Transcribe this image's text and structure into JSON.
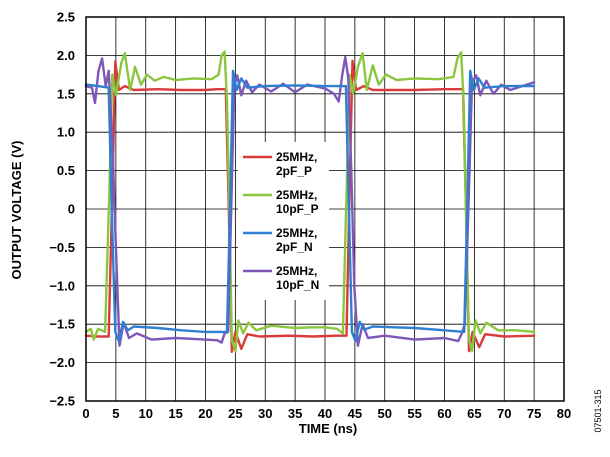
{
  "chart_data": {
    "type": "line",
    "title": "",
    "xlabel": "TIME (ns)",
    "ylabel": "OUTPUT VOLTAGE (V)",
    "xlim": [
      0,
      80
    ],
    "ylim": [
      -2.5,
      2.5
    ],
    "x_ticks": [
      "0",
      "5",
      "10",
      "15",
      "20",
      "25",
      "30",
      "35",
      "40",
      "45",
      "50",
      "55",
      "60",
      "65",
      "70",
      "75",
      "80"
    ],
    "y_ticks": [
      "2.5",
      "2.0",
      "1.5",
      "1.0",
      "0.5",
      "0",
      "−0.5",
      "−1.0",
      "−1.5",
      "−2.0",
      "−2.5"
    ],
    "grid": true,
    "legend_position": "center",
    "figure_id": "07501-315",
    "series": [
      {
        "name": "25MHz,\n2pF_P",
        "color": "#d93a3a",
        "points": [
          [
            0,
            -1.65
          ],
          [
            2,
            -1.66
          ],
          [
            3.8,
            -1.66
          ],
          [
            4.4,
            0.2
          ],
          [
            4.9,
            1.92
          ],
          [
            5.5,
            1.55
          ],
          [
            6.5,
            1.6
          ],
          [
            8,
            1.55
          ],
          [
            12,
            1.56
          ],
          [
            16,
            1.55
          ],
          [
            20,
            1.55
          ],
          [
            22,
            1.56
          ],
          [
            23.4,
            1.56
          ],
          [
            23.9,
            0
          ],
          [
            24.4,
            -1.86
          ],
          [
            25,
            -1.6
          ],
          [
            26,
            -1.82
          ],
          [
            27,
            -1.63
          ],
          [
            29,
            -1.66
          ],
          [
            34,
            -1.65
          ],
          [
            38,
            -1.66
          ],
          [
            42,
            -1.65
          ],
          [
            43.6,
            -1.65
          ],
          [
            44.1,
            0.2
          ],
          [
            44.6,
            1.93
          ],
          [
            45.2,
            1.55
          ],
          [
            46.5,
            1.6
          ],
          [
            48,
            1.55
          ],
          [
            55,
            1.55
          ],
          [
            60,
            1.56
          ],
          [
            63.1,
            1.56
          ],
          [
            63.6,
            0
          ],
          [
            64.1,
            -1.85
          ],
          [
            64.7,
            -1.6
          ],
          [
            65.8,
            -1.8
          ],
          [
            66.8,
            -1.63
          ],
          [
            70,
            -1.66
          ],
          [
            75,
            -1.65
          ]
        ]
      },
      {
        "name": "25MHz,\n10pF_P",
        "color": "#8cc63f",
        "points": [
          [
            0,
            -1.6
          ],
          [
            0.8,
            -1.56
          ],
          [
            1.3,
            -1.7
          ],
          [
            2,
            -1.56
          ],
          [
            3.2,
            -1.6
          ],
          [
            3.9,
            0.2
          ],
          [
            4.4,
            1.75
          ],
          [
            5,
            1.48
          ],
          [
            5.9,
            1.9
          ],
          [
            6.5,
            2.03
          ],
          [
            7.4,
            1.55
          ],
          [
            8.2,
            1.85
          ],
          [
            9.2,
            1.62
          ],
          [
            10.2,
            1.75
          ],
          [
            11.5,
            1.67
          ],
          [
            13,
            1.72
          ],
          [
            15,
            1.68
          ],
          [
            18,
            1.7
          ],
          [
            21,
            1.69
          ],
          [
            22.2,
            1.75
          ],
          [
            22.7,
            2.0
          ],
          [
            23.2,
            2.05
          ],
          [
            23.6,
            1.4
          ],
          [
            24,
            0
          ],
          [
            24.4,
            -1.7
          ],
          [
            25,
            -1.85
          ],
          [
            25.5,
            -1.45
          ],
          [
            26.3,
            -1.62
          ],
          [
            27.2,
            -1.48
          ],
          [
            28.5,
            -1.58
          ],
          [
            31,
            -1.52
          ],
          [
            35,
            -1.55
          ],
          [
            38,
            -1.54
          ],
          [
            40,
            -1.54
          ],
          [
            42,
            -1.56
          ],
          [
            43,
            -1.62
          ],
          [
            43.6,
            0.2
          ],
          [
            44.1,
            1.75
          ],
          [
            44.7,
            1.5
          ],
          [
            45.5,
            1.85
          ],
          [
            46.3,
            2.03
          ],
          [
            47,
            1.55
          ],
          [
            48,
            1.87
          ],
          [
            49,
            1.62
          ],
          [
            50.2,
            1.75
          ],
          [
            52,
            1.68
          ],
          [
            55,
            1.7
          ],
          [
            59,
            1.69
          ],
          [
            61.5,
            1.72
          ],
          [
            62.2,
            1.97
          ],
          [
            62.8,
            2.04
          ],
          [
            63.2,
            1.4
          ],
          [
            63.6,
            0
          ],
          [
            64.1,
            -1.7
          ],
          [
            64.6,
            -1.85
          ],
          [
            65.2,
            -1.45
          ],
          [
            66,
            -1.62
          ],
          [
            67,
            -1.48
          ],
          [
            69,
            -1.58
          ],
          [
            72,
            -1.58
          ],
          [
            75,
            -1.6
          ]
        ]
      },
      {
        "name": "25MHz,\n2pF_N",
        "color": "#2f7fd0",
        "points": [
          [
            0,
            1.62
          ],
          [
            2,
            1.6
          ],
          [
            3.8,
            1.58
          ],
          [
            4.3,
            0
          ],
          [
            4.9,
            -1.6
          ],
          [
            5.5,
            -1.72
          ],
          [
            6.2,
            -1.47
          ],
          [
            7,
            -1.58
          ],
          [
            8,
            -1.53
          ],
          [
            12,
            -1.55
          ],
          [
            16,
            -1.58
          ],
          [
            20,
            -1.6
          ],
          [
            23.6,
            -1.6
          ],
          [
            24.1,
            0
          ],
          [
            24.6,
            1.8
          ],
          [
            25.2,
            1.55
          ],
          [
            26,
            1.7
          ],
          [
            27,
            1.58
          ],
          [
            30,
            1.6
          ],
          [
            35,
            1.61
          ],
          [
            40,
            1.6
          ],
          [
            43.5,
            1.6
          ],
          [
            44,
            0
          ],
          [
            44.5,
            -1.6
          ],
          [
            45.1,
            -1.72
          ],
          [
            45.8,
            -1.47
          ],
          [
            46.6,
            -1.57
          ],
          [
            48,
            -1.53
          ],
          [
            55,
            -1.55
          ],
          [
            60,
            -1.58
          ],
          [
            63.3,
            -1.6
          ],
          [
            63.8,
            0
          ],
          [
            64.3,
            1.8
          ],
          [
            64.9,
            1.55
          ],
          [
            65.7,
            1.7
          ],
          [
            66.7,
            1.58
          ],
          [
            70,
            1.6
          ],
          [
            75,
            1.6
          ]
        ]
      },
      {
        "name": "25MHz,\n10pF_N",
        "color": "#7e57b8",
        "points": [
          [
            0,
            1.6
          ],
          [
            1,
            1.58
          ],
          [
            1.5,
            1.38
          ],
          [
            2.1,
            1.8
          ],
          [
            2.7,
            1.96
          ],
          [
            3.3,
            1.6
          ],
          [
            3.8,
            1.8
          ],
          [
            4.4,
            0.9
          ],
          [
            5,
            -0.5
          ],
          [
            5.6,
            -1.78
          ],
          [
            6.3,
            -1.48
          ],
          [
            7.2,
            -1.68
          ],
          [
            8.5,
            -1.62
          ],
          [
            11,
            -1.7
          ],
          [
            15,
            -1.68
          ],
          [
            20,
            -1.7
          ],
          [
            22,
            -1.71
          ],
          [
            22.7,
            -1.74
          ],
          [
            23.2,
            -1.62
          ],
          [
            23.8,
            -1.6
          ],
          [
            24.3,
            0
          ],
          [
            24.8,
            1.6
          ],
          [
            25.3,
            1.74
          ],
          [
            26,
            1.48
          ],
          [
            26.8,
            1.67
          ],
          [
            27.8,
            1.52
          ],
          [
            29,
            1.62
          ],
          [
            31,
            1.53
          ],
          [
            33,
            1.63
          ],
          [
            35,
            1.52
          ],
          [
            37,
            1.62
          ],
          [
            40,
            1.57
          ],
          [
            41.5,
            1.5
          ],
          [
            42.3,
            1.4
          ],
          [
            42.9,
            1.75
          ],
          [
            43.4,
            1.98
          ],
          [
            43.9,
            1.7
          ],
          [
            44.4,
            0.5
          ],
          [
            44.9,
            -1.0
          ],
          [
            45.5,
            -1.78
          ],
          [
            46.3,
            -1.5
          ],
          [
            47.2,
            -1.68
          ],
          [
            50,
            -1.65
          ],
          [
            55,
            -1.7
          ],
          [
            60,
            -1.68
          ],
          [
            62.3,
            -1.72
          ],
          [
            62.9,
            -1.62
          ],
          [
            63.4,
            -1.5
          ],
          [
            64,
            0
          ],
          [
            64.6,
            1.65
          ],
          [
            65.3,
            1.74
          ],
          [
            66,
            1.48
          ],
          [
            67,
            1.67
          ],
          [
            68.2,
            1.5
          ],
          [
            69.5,
            1.62
          ],
          [
            71,
            1.55
          ],
          [
            73,
            1.6
          ],
          [
            75,
            1.65
          ]
        ]
      }
    ]
  }
}
